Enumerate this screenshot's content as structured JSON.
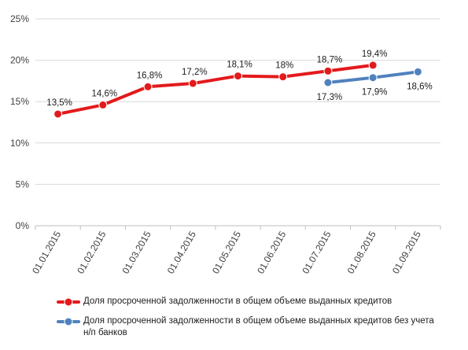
{
  "chart_data": {
    "type": "line",
    "categories": [
      "01.01.2015",
      "01.02.2015",
      "01.03.2015",
      "01.04.2015",
      "01.05.2015",
      "01.06.2015",
      "01.07.2015",
      "01.08.2015",
      "01.09.2015"
    ],
    "y_ticks": [
      "0%",
      "5%",
      "10%",
      "15%",
      "20%",
      "25%"
    ],
    "ylim": [
      0,
      25
    ],
    "grid": true,
    "legend_position": "bottom",
    "series": [
      {
        "name": "Доля просроченной задолженности в общем объеме выданных кредитов",
        "color": "#e31a1c",
        "values": [
          13.5,
          14.6,
          16.8,
          17.2,
          18.1,
          18.0,
          18.7,
          19.4,
          null
        ],
        "labels": [
          "13,5%",
          "14,6%",
          "16,8%",
          "17,2%",
          "18,1%",
          "18%",
          "18,7%",
          "19,4%",
          ""
        ]
      },
      {
        "name": "Доля просроченной задолженности в общем объеме выданных кредитов без учета н/п банков",
        "color": "#4f81bd",
        "values": [
          null,
          null,
          null,
          null,
          null,
          null,
          17.3,
          17.9,
          18.6
        ],
        "labels": [
          "",
          "",
          "",
          "",
          "",
          "",
          "17,3%",
          "17,9%",
          "18,6%"
        ]
      }
    ]
  }
}
